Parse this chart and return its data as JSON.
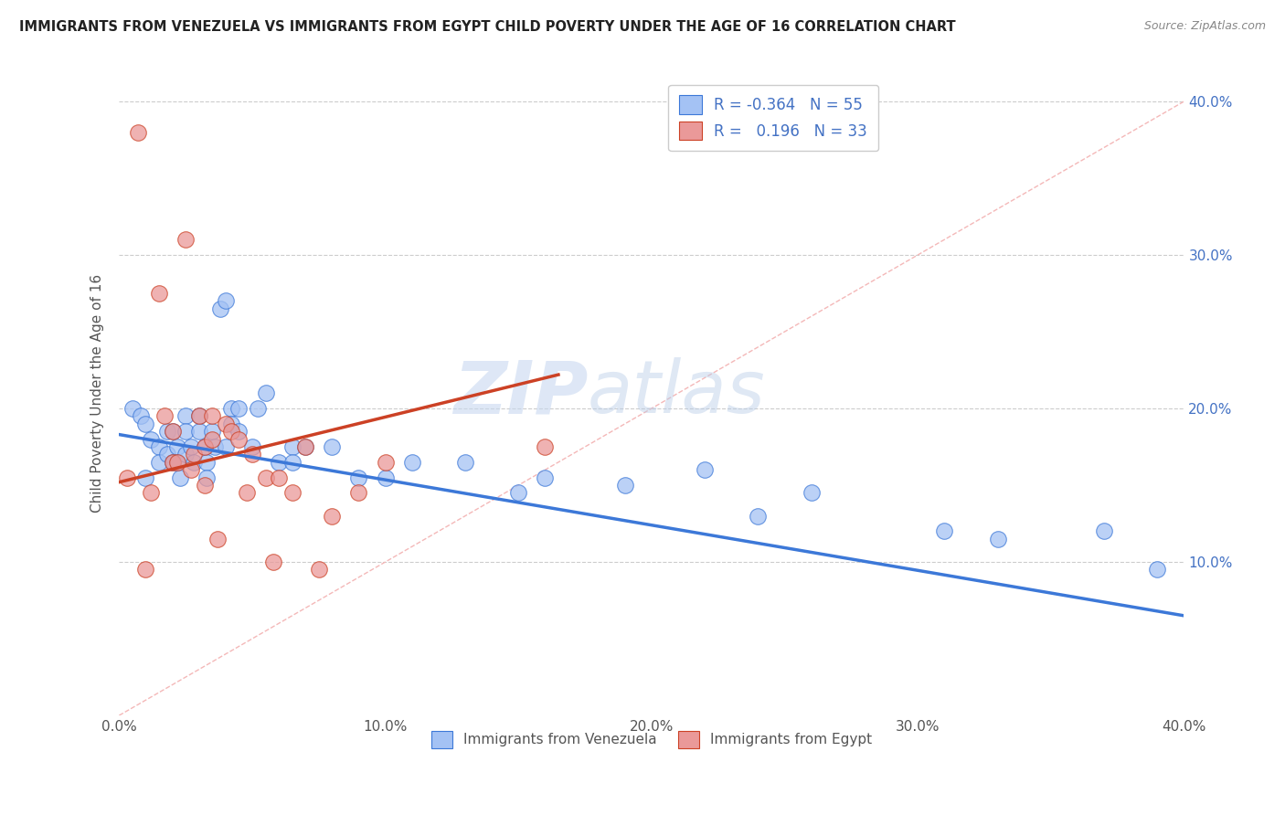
{
  "title": "IMMIGRANTS FROM VENEZUELA VS IMMIGRANTS FROM EGYPT CHILD POVERTY UNDER THE AGE OF 16 CORRELATION CHART",
  "source": "Source: ZipAtlas.com",
  "ylabel": "Child Poverty Under the Age of 16",
  "xlim": [
    0.0,
    0.4
  ],
  "ylim": [
    0.0,
    0.42
  ],
  "xticks": [
    0.0,
    0.1,
    0.2,
    0.3,
    0.4
  ],
  "yticks": [
    0.1,
    0.2,
    0.3,
    0.4
  ],
  "xtick_labels": [
    "0.0%",
    "10.0%",
    "20.0%",
    "30.0%",
    "40.0%"
  ],
  "ytick_labels": [
    "10.0%",
    "20.0%",
    "30.0%",
    "40.0%"
  ],
  "blue_color": "#a4c2f4",
  "pink_color": "#ea9999",
  "blue_line_color": "#3c78d8",
  "pink_line_color": "#cc4125",
  "diag_line_color": "#cccccc",
  "watermark_zip": "ZIP",
  "watermark_atlas": "atlas",
  "legend_R_blue": "-0.364",
  "legend_N_blue": "55",
  "legend_R_pink": "0.196",
  "legend_N_pink": "33",
  "blue_scatter_x": [
    0.005,
    0.008,
    0.01,
    0.01,
    0.012,
    0.015,
    0.015,
    0.018,
    0.018,
    0.02,
    0.02,
    0.022,
    0.022,
    0.023,
    0.025,
    0.025,
    0.025,
    0.027,
    0.028,
    0.03,
    0.03,
    0.032,
    0.033,
    0.033,
    0.035,
    0.036,
    0.038,
    0.04,
    0.04,
    0.042,
    0.042,
    0.045,
    0.045,
    0.05,
    0.052,
    0.055,
    0.06,
    0.065,
    0.065,
    0.07,
    0.08,
    0.09,
    0.1,
    0.11,
    0.13,
    0.15,
    0.16,
    0.19,
    0.22,
    0.24,
    0.26,
    0.31,
    0.33,
    0.37,
    0.39
  ],
  "blue_scatter_y": [
    0.2,
    0.195,
    0.19,
    0.155,
    0.18,
    0.175,
    0.165,
    0.185,
    0.17,
    0.185,
    0.165,
    0.175,
    0.165,
    0.155,
    0.195,
    0.185,
    0.17,
    0.175,
    0.165,
    0.195,
    0.185,
    0.175,
    0.165,
    0.155,
    0.185,
    0.175,
    0.265,
    0.27,
    0.175,
    0.2,
    0.19,
    0.2,
    0.185,
    0.175,
    0.2,
    0.21,
    0.165,
    0.175,
    0.165,
    0.175,
    0.175,
    0.155,
    0.155,
    0.165,
    0.165,
    0.145,
    0.155,
    0.15,
    0.16,
    0.13,
    0.145,
    0.12,
    0.115,
    0.12,
    0.095
  ],
  "pink_scatter_x": [
    0.003,
    0.007,
    0.01,
    0.012,
    0.015,
    0.017,
    0.02,
    0.02,
    0.022,
    0.025,
    0.027,
    0.028,
    0.03,
    0.032,
    0.032,
    0.035,
    0.035,
    0.037,
    0.04,
    0.042,
    0.045,
    0.048,
    0.05,
    0.055,
    0.058,
    0.06,
    0.065,
    0.07,
    0.075,
    0.08,
    0.09,
    0.1,
    0.16
  ],
  "pink_scatter_y": [
    0.155,
    0.38,
    0.095,
    0.145,
    0.275,
    0.195,
    0.185,
    0.165,
    0.165,
    0.31,
    0.16,
    0.17,
    0.195,
    0.175,
    0.15,
    0.195,
    0.18,
    0.115,
    0.19,
    0.185,
    0.18,
    0.145,
    0.17,
    0.155,
    0.1,
    0.155,
    0.145,
    0.175,
    0.095,
    0.13,
    0.145,
    0.165,
    0.175
  ],
  "blue_trend_x": [
    0.0,
    0.4
  ],
  "blue_trend_y": [
    0.183,
    0.065
  ],
  "pink_trend_x": [
    0.0,
    0.165
  ],
  "pink_trend_y": [
    0.152,
    0.222
  ]
}
